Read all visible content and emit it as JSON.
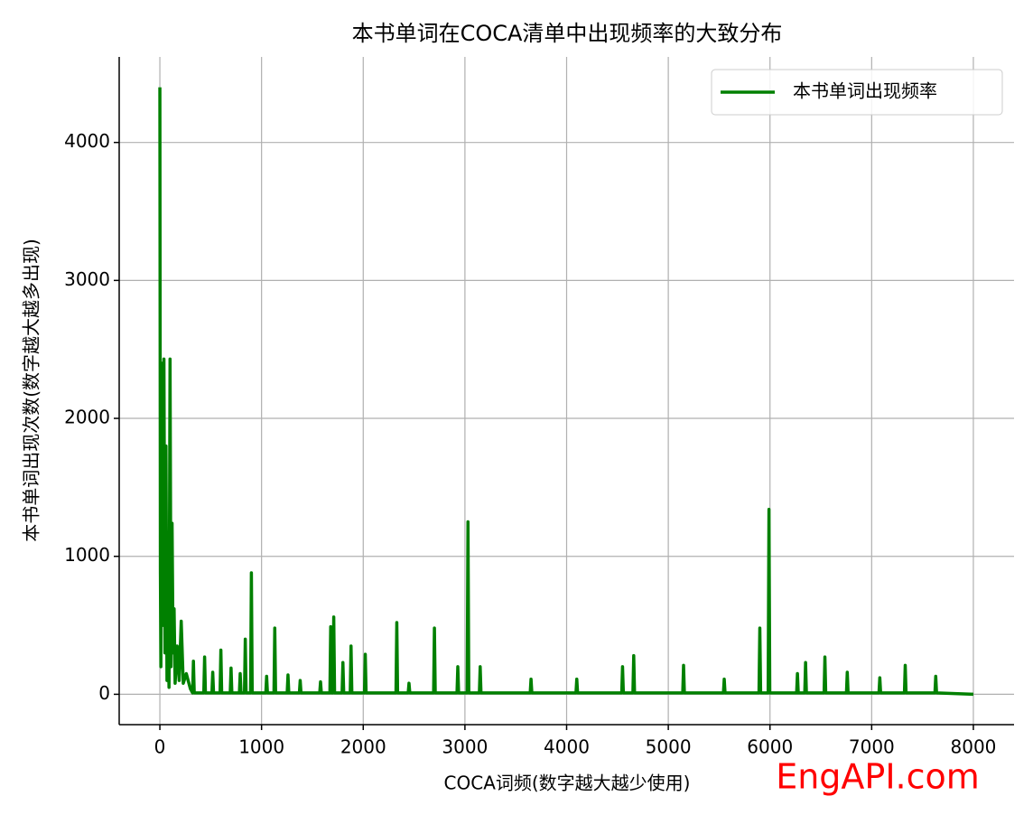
{
  "chart_data": {
    "type": "line",
    "title": "本书单词在COCA清单中出现频率的大致分布",
    "xlabel": "COCA词频(数字越大越少使用)",
    "ylabel": "本书单词出现次数(数字越大越多出现)",
    "watermark": "EngAPI.com",
    "legend": "upper right",
    "grid": true,
    "xlim": [
      -400,
      8400
    ],
    "ylim": [
      -220,
      4620
    ],
    "xticks": [
      0,
      1000,
      2000,
      3000,
      4000,
      5000,
      6000,
      7000,
      8000
    ],
    "yticks": [
      0,
      1000,
      2000,
      3000,
      4000
    ],
    "x": [
      0,
      5,
      10,
      20,
      30,
      40,
      50,
      60,
      70,
      80,
      90,
      100,
      110,
      120,
      130,
      140,
      150,
      170,
      190,
      210,
      230,
      260,
      300,
      322,
      330,
      338,
      432,
      440,
      448,
      512,
      520,
      528,
      592,
      600,
      608,
      692,
      700,
      708,
      782,
      790,
      798,
      832,
      840,
      848,
      892,
      900,
      908,
      1042,
      1050,
      1058,
      1122,
      1130,
      1138,
      1252,
      1260,
      1268,
      1372,
      1380,
      1388,
      1572,
      1580,
      1588,
      1672,
      1680,
      1688,
      1702,
      1710,
      1718,
      1792,
      1800,
      1808,
      1872,
      1880,
      1888,
      2012,
      2020,
      2028,
      2322,
      2330,
      2338,
      2442,
      2450,
      2458,
      2692,
      2700,
      2708,
      2922,
      2930,
      2938,
      3022,
      3030,
      3038,
      3142,
      3150,
      3158,
      3642,
      3650,
      3658,
      4092,
      4100,
      4108,
      4542,
      4550,
      4558,
      4652,
      4660,
      4668,
      5142,
      5150,
      5158,
      5542,
      5550,
      5558,
      5892,
      5900,
      5908,
      5982,
      5990,
      5998,
      6262,
      6270,
      6278,
      6342,
      6350,
      6358,
      6532,
      6540,
      6548,
      6752,
      6760,
      6768,
      7072,
      7080,
      7088,
      7322,
      7330,
      7338,
      7622,
      7630,
      7638,
      8000
    ],
    "series": [
      {
        "name": "本书单词出现频率",
        "color": "#008000",
        "values": [
          4400,
          900,
          200,
          2400,
          500,
          2430,
          300,
          1800,
          100,
          400,
          50,
          2430,
          200,
          1240,
          300,
          620,
          80,
          350,
          100,
          530,
          80,
          150,
          40,
          10,
          240,
          10,
          10,
          270,
          10,
          10,
          160,
          10,
          10,
          320,
          10,
          10,
          190,
          10,
          10,
          150,
          10,
          10,
          400,
          10,
          10,
          880,
          10,
          10,
          130,
          10,
          10,
          480,
          10,
          10,
          140,
          10,
          10,
          100,
          10,
          10,
          90,
          10,
          10,
          490,
          10,
          10,
          560,
          10,
          10,
          230,
          10,
          10,
          350,
          10,
          10,
          290,
          10,
          10,
          520,
          10,
          10,
          80,
          10,
          10,
          480,
          10,
          10,
          200,
          10,
          10,
          1250,
          10,
          10,
          200,
          10,
          10,
          110,
          10,
          10,
          110,
          10,
          10,
          200,
          10,
          10,
          280,
          10,
          10,
          210,
          10,
          10,
          110,
          10,
          10,
          480,
          10,
          10,
          1340,
          10,
          10,
          150,
          10,
          10,
          230,
          10,
          10,
          270,
          10,
          10,
          160,
          10,
          10,
          120,
          10,
          10,
          210,
          10,
          10,
          130,
          10,
          0
        ]
      }
    ]
  }
}
